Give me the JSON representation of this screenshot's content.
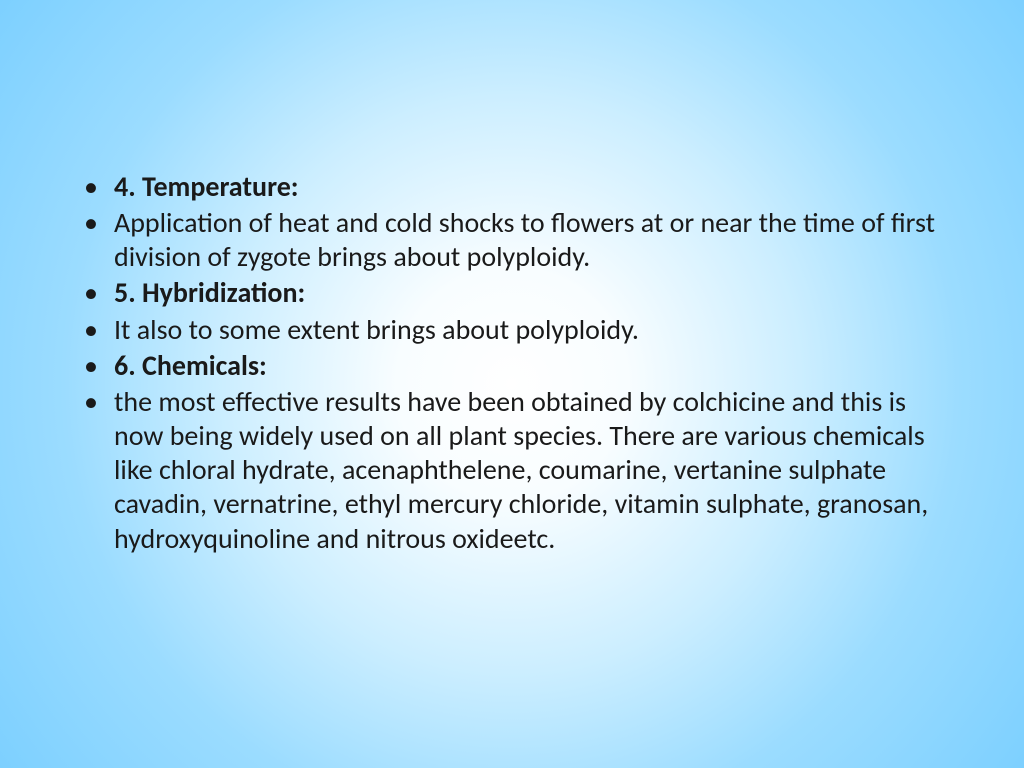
{
  "slide": {
    "background": {
      "type": "radial-gradient",
      "center_color": "#ffffff",
      "outer_color": "#7dd0ff",
      "mid_colors": [
        "#f8fdff",
        "#cceeff",
        "#9bdcff"
      ]
    },
    "font_family": "Calibri",
    "body_fontsize": 28,
    "text_color": "#1a1a1a",
    "bullet_char": "•",
    "bullets": [
      {
        "text": "4. Temperature:",
        "bold": true
      },
      {
        "text": "Application of heat and cold shocks to flowers at or near the time of first division of zygote brings about polyploidy.",
        "bold": false
      },
      {
        "text": "5. Hybridization:",
        "bold": true
      },
      {
        "text": "It also to some extent brings about polyploidy.",
        "bold": false
      },
      {
        "text": "6. Chemicals:",
        "bold": true
      },
      {
        "text": "the most effective results have been obtained by colchicine and this is now being widely used on all plant species. There are various chemicals like chloral hydrate, acenaphthelene, coumarine, vertanine sulphate cavadin, vernatrine, ethyl mercury chloride, vitamin sulphate, granosan, hydroxyquinoline and nitrous oxideetc.",
        "bold": false
      }
    ]
  }
}
